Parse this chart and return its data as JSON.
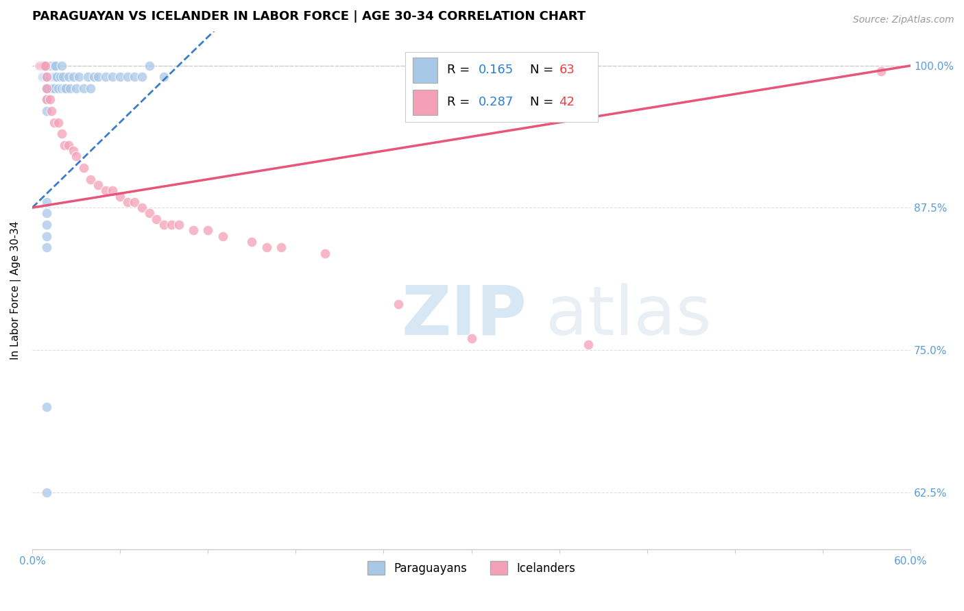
{
  "title": "PARAGUAYAN VS ICELANDER IN LABOR FORCE | AGE 30-34 CORRELATION CHART",
  "source": "Source: ZipAtlas.com",
  "ylabel": "In Labor Force | Age 30-34",
  "xlim": [
    0.0,
    0.6
  ],
  "ylim": [
    0.575,
    1.03
  ],
  "blue_color": "#A8C8E8",
  "pink_color": "#F4A0B8",
  "blue_line_color": "#3A7CC8",
  "pink_line_color": "#E8547A",
  "blue_R": "0.165",
  "blue_N": "63",
  "pink_R": "0.287",
  "pink_N": "42",
  "legend_R_color": "#2B7FD4",
  "legend_N_color": "#E84040",
  "hline_color": "#CCCCCC",
  "ytick_positions": [
    0.625,
    0.75,
    0.875,
    1.0
  ],
  "ytick_labels": [
    "62.5%",
    "75.0%",
    "87.5%",
    "100.0%"
  ],
  "blue_x": [
    0.005,
    0.005,
    0.007,
    0.007,
    0.007,
    0.008,
    0.008,
    0.008,
    0.009,
    0.009,
    0.01,
    0.01,
    0.01,
    0.01,
    0.01,
    0.01,
    0.01,
    0.01,
    0.01,
    0.01,
    0.012,
    0.012,
    0.013,
    0.013,
    0.014,
    0.015,
    0.015,
    0.015,
    0.016,
    0.016,
    0.017,
    0.018,
    0.019,
    0.02,
    0.02,
    0.021,
    0.022,
    0.023,
    0.025,
    0.026,
    0.028,
    0.03,
    0.032,
    0.035,
    0.038,
    0.04,
    0.042,
    0.045,
    0.05,
    0.055,
    0.06,
    0.065,
    0.07,
    0.075,
    0.08,
    0.09,
    0.01,
    0.01,
    0.01,
    0.01,
    0.01,
    0.01,
    0.01
  ],
  "blue_y": [
    1.0,
    1.0,
    1.0,
    1.0,
    0.99,
    1.0,
    1.0,
    0.99,
    1.0,
    0.99,
    1.0,
    1.0,
    1.0,
    1.0,
    0.99,
    0.99,
    0.98,
    0.98,
    0.97,
    0.96,
    1.0,
    0.99,
    1.0,
    0.98,
    0.99,
    1.0,
    0.99,
    0.98,
    1.0,
    0.99,
    0.99,
    0.98,
    0.99,
    1.0,
    0.98,
    0.99,
    0.98,
    0.98,
    0.99,
    0.98,
    0.99,
    0.98,
    0.99,
    0.98,
    0.99,
    0.98,
    0.99,
    0.99,
    0.99,
    0.99,
    0.99,
    0.99,
    0.99,
    0.99,
    1.0,
    0.99,
    0.88,
    0.87,
    0.86,
    0.85,
    0.84,
    0.7,
    0.625
  ],
  "pink_x": [
    0.005,
    0.006,
    0.007,
    0.008,
    0.009,
    0.01,
    0.01,
    0.01,
    0.012,
    0.013,
    0.015,
    0.018,
    0.02,
    0.022,
    0.025,
    0.028,
    0.03,
    0.035,
    0.04,
    0.045,
    0.05,
    0.055,
    0.06,
    0.065,
    0.07,
    0.075,
    0.08,
    0.085,
    0.09,
    0.095,
    0.1,
    0.11,
    0.12,
    0.13,
    0.15,
    0.16,
    0.17,
    0.2,
    0.25,
    0.3,
    0.38,
    0.58
  ],
  "pink_y": [
    1.0,
    1.0,
    1.0,
    1.0,
    1.0,
    0.99,
    0.98,
    0.97,
    0.97,
    0.96,
    0.95,
    0.95,
    0.94,
    0.93,
    0.93,
    0.925,
    0.92,
    0.91,
    0.9,
    0.895,
    0.89,
    0.89,
    0.885,
    0.88,
    0.88,
    0.875,
    0.87,
    0.865,
    0.86,
    0.86,
    0.86,
    0.855,
    0.855,
    0.85,
    0.845,
    0.84,
    0.84,
    0.835,
    0.79,
    0.76,
    0.755,
    0.995
  ]
}
